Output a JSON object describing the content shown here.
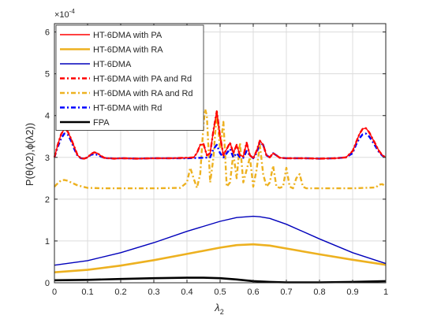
{
  "chart_data": {
    "type": "line",
    "xlabel": "λ",
    "xlabel_sub": "2",
    "ylabel": "P(θ(λ2),ϕ(λ2))",
    "y_exponent_label": "×10",
    "y_exponent_power": "-4",
    "xlim": [
      0,
      1
    ],
    "ylim": [
      0,
      6.2
    ],
    "x_ticks": [
      0,
      0.1,
      0.2,
      0.3,
      0.4,
      0.5,
      0.6,
      0.7,
      0.8,
      0.9,
      1
    ],
    "x_tick_labels": [
      "0",
      "0.1",
      "0.2",
      "0.3",
      "0.4",
      "0.5",
      "0.6",
      "0.7",
      "0.8",
      "0.9",
      "1"
    ],
    "y_ticks": [
      0,
      1,
      2,
      3,
      4,
      5,
      6
    ],
    "y_tick_labels": [
      "0",
      "1",
      "2",
      "3",
      "4",
      "5",
      "6"
    ],
    "grid": true,
    "legend_position": "top-left",
    "series": [
      {
        "name": "HT-6DMA with PA",
        "color": "#ff0000",
        "dash": "solid",
        "x": [
          0,
          0.01,
          0.02,
          0.03,
          0.04,
          0.05,
          0.06,
          0.07,
          0.08,
          0.09,
          0.1,
          0.11,
          0.12,
          0.13,
          0.14,
          0.15,
          0.16,
          0.17,
          0.18,
          0.2,
          0.25,
          0.3,
          0.35,
          0.4,
          0.42,
          0.43,
          0.44,
          0.45,
          0.46,
          0.47,
          0.48,
          0.49,
          0.5,
          0.51,
          0.52,
          0.53,
          0.54,
          0.55,
          0.56,
          0.57,
          0.58,
          0.59,
          0.6,
          0.61,
          0.62,
          0.63,
          0.64,
          0.65,
          0.66,
          0.67,
          0.68,
          0.7,
          0.75,
          0.8,
          0.85,
          0.88,
          0.9,
          0.91,
          0.92,
          0.93,
          0.94,
          0.95,
          0.96,
          0.97,
          0.98,
          0.99,
          1
        ],
        "y": [
          3.0,
          3.3,
          3.55,
          3.68,
          3.62,
          3.45,
          3.25,
          3.05,
          2.98,
          2.97,
          3.0,
          3.08,
          3.12,
          3.1,
          3.04,
          2.99,
          2.98,
          2.98,
          2.97,
          2.98,
          2.97,
          2.98,
          2.98,
          2.99,
          3.0,
          3.1,
          3.3,
          3.32,
          3.05,
          3.1,
          3.65,
          4.1,
          3.5,
          3.05,
          3.2,
          3.35,
          3.1,
          3.3,
          3.05,
          3.02,
          3.35,
          3.05,
          2.98,
          3.15,
          3.4,
          3.3,
          3.05,
          3.0,
          3.1,
          3.05,
          2.99,
          2.98,
          2.98,
          2.97,
          2.98,
          3.0,
          3.15,
          3.35,
          3.55,
          3.68,
          3.7,
          3.6,
          3.45,
          3.3,
          3.15,
          3.05,
          3.0
        ]
      },
      {
        "name": "HT-6DMA with RA",
        "color": "#edb120",
        "dash": "solid",
        "x": [
          0,
          0.1,
          0.2,
          0.3,
          0.4,
          0.5,
          0.55,
          0.6,
          0.65,
          0.7,
          0.8,
          0.9,
          1
        ],
        "y": [
          0.25,
          0.31,
          0.41,
          0.54,
          0.69,
          0.84,
          0.9,
          0.92,
          0.89,
          0.82,
          0.68,
          0.55,
          0.43
        ]
      },
      {
        "name": "HT-6DMA",
        "color": "#0000bb",
        "dash": "solid",
        "x": [
          0,
          0.1,
          0.2,
          0.3,
          0.4,
          0.5,
          0.55,
          0.6,
          0.62,
          0.65,
          0.7,
          0.8,
          0.9,
          1
        ],
        "y": [
          0.42,
          0.53,
          0.72,
          0.96,
          1.23,
          1.47,
          1.56,
          1.59,
          1.58,
          1.54,
          1.4,
          1.05,
          0.72,
          0.46
        ]
      },
      {
        "name": "HT-6DMA with PA and Rd",
        "color": "#ff0000",
        "dash": "6,3,2,3",
        "x": [
          0,
          0.01,
          0.02,
          0.03,
          0.04,
          0.05,
          0.06,
          0.07,
          0.08,
          0.09,
          0.1,
          0.11,
          0.12,
          0.13,
          0.14,
          0.15,
          0.16,
          0.17,
          0.18,
          0.2,
          0.25,
          0.3,
          0.35,
          0.4,
          0.42,
          0.43,
          0.44,
          0.45,
          0.46,
          0.47,
          0.48,
          0.49,
          0.5,
          0.51,
          0.52,
          0.53,
          0.54,
          0.55,
          0.56,
          0.57,
          0.58,
          0.59,
          0.6,
          0.61,
          0.62,
          0.63,
          0.64,
          0.65,
          0.66,
          0.67,
          0.68,
          0.7,
          0.75,
          0.8,
          0.85,
          0.88,
          0.9,
          0.91,
          0.92,
          0.93,
          0.94,
          0.95,
          0.96,
          0.97,
          0.98,
          0.99,
          1
        ],
        "y": [
          3.0,
          3.3,
          3.55,
          3.68,
          3.62,
          3.45,
          3.25,
          3.05,
          2.98,
          2.97,
          3.0,
          3.08,
          3.12,
          3.1,
          3.04,
          2.99,
          2.98,
          2.98,
          2.97,
          2.98,
          2.97,
          2.98,
          2.98,
          2.99,
          3.0,
          3.1,
          3.3,
          3.32,
          3.05,
          3.1,
          3.65,
          4.1,
          3.5,
          3.05,
          3.2,
          3.35,
          3.1,
          3.3,
          3.05,
          3.02,
          3.35,
          3.05,
          2.98,
          3.15,
          3.4,
          3.3,
          3.05,
          3.0,
          3.1,
          3.05,
          2.99,
          2.98,
          2.98,
          2.97,
          2.98,
          3.0,
          3.15,
          3.35,
          3.55,
          3.68,
          3.7,
          3.6,
          3.45,
          3.3,
          3.15,
          3.05,
          3.0
        ]
      },
      {
        "name": "HT-6DMA with RA and Rd",
        "color": "#edb120",
        "dash": "6,3,2,3",
        "x": [
          0,
          0.01,
          0.02,
          0.03,
          0.04,
          0.05,
          0.07,
          0.1,
          0.15,
          0.2,
          0.3,
          0.38,
          0.4,
          0.41,
          0.42,
          0.43,
          0.44,
          0.45,
          0.455,
          0.46,
          0.47,
          0.48,
          0.49,
          0.5,
          0.51,
          0.52,
          0.53,
          0.54,
          0.55,
          0.56,
          0.57,
          0.58,
          0.59,
          0.6,
          0.61,
          0.62,
          0.63,
          0.64,
          0.65,
          0.66,
          0.67,
          0.68,
          0.69,
          0.7,
          0.71,
          0.72,
          0.73,
          0.74,
          0.75,
          0.76,
          0.77,
          0.78,
          0.8,
          0.9,
          0.97,
          0.98,
          0.99,
          1
        ],
        "y": [
          2.3,
          2.38,
          2.45,
          2.46,
          2.44,
          2.4,
          2.33,
          2.27,
          2.26,
          2.26,
          2.26,
          2.27,
          2.4,
          2.75,
          2.5,
          2.27,
          2.6,
          3.8,
          4.15,
          4.0,
          2.4,
          3.0,
          4.1,
          3.2,
          3.85,
          2.3,
          2.4,
          3.1,
          2.5,
          3.35,
          2.4,
          2.7,
          3.0,
          2.3,
          2.7,
          3.3,
          2.6,
          2.3,
          2.4,
          2.8,
          2.3,
          2.27,
          2.3,
          2.75,
          2.3,
          2.26,
          2.5,
          2.6,
          2.3,
          2.26,
          2.26,
          2.26,
          2.26,
          2.26,
          2.28,
          2.35,
          2.36,
          2.3
        ]
      },
      {
        "name": "HT-6DMA with Rd",
        "color": "#0000ff",
        "dash": "6,3,2,3",
        "x": [
          0,
          0.01,
          0.02,
          0.03,
          0.04,
          0.05,
          0.06,
          0.07,
          0.08,
          0.09,
          0.1,
          0.11,
          0.12,
          0.13,
          0.14,
          0.15,
          0.16,
          0.17,
          0.18,
          0.2,
          0.25,
          0.3,
          0.35,
          0.4,
          0.45,
          0.47,
          0.48,
          0.49,
          0.5,
          0.51,
          0.52,
          0.53,
          0.54,
          0.55,
          0.56,
          0.57,
          0.58,
          0.59,
          0.6,
          0.61,
          0.62,
          0.63,
          0.64,
          0.65,
          0.66,
          0.67,
          0.68,
          0.7,
          0.75,
          0.8,
          0.85,
          0.88,
          0.9,
          0.91,
          0.92,
          0.93,
          0.94,
          0.95,
          0.96,
          0.97,
          0.98,
          0.99,
          1
        ],
        "y": [
          3.0,
          3.25,
          3.45,
          3.57,
          3.55,
          3.4,
          3.2,
          3.03,
          2.98,
          2.97,
          3.0,
          3.06,
          3.08,
          3.06,
          3.02,
          2.99,
          2.98,
          2.98,
          2.97,
          2.98,
          2.97,
          2.98,
          2.98,
          2.98,
          2.99,
          3.0,
          3.2,
          3.3,
          3.1,
          3.0,
          3.1,
          3.2,
          3.0,
          3.1,
          3.0,
          2.99,
          3.15,
          3.05,
          2.98,
          3.1,
          3.35,
          3.3,
          3.05,
          3.0,
          3.1,
          3.05,
          2.99,
          2.98,
          2.98,
          2.97,
          2.98,
          3.0,
          3.1,
          3.3,
          3.45,
          3.55,
          3.57,
          3.5,
          3.38,
          3.25,
          3.12,
          3.04,
          3.0
        ]
      },
      {
        "name": "FPA",
        "color": "#000000",
        "dash": "solid",
        "x": [
          0,
          0.1,
          0.2,
          0.3,
          0.4,
          0.45,
          0.5,
          0.55,
          0.6,
          0.65,
          0.7,
          0.8,
          0.9,
          1
        ],
        "y": [
          0.06,
          0.07,
          0.09,
          0.11,
          0.12,
          0.12,
          0.11,
          0.08,
          0.04,
          0.02,
          0.01,
          0.01,
          0.02,
          0.04
        ]
      }
    ]
  }
}
